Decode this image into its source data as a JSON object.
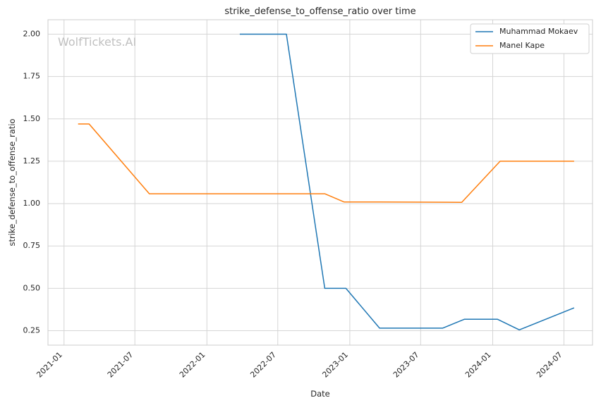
{
  "chart_data": {
    "type": "line",
    "title": "strike_defense_to_offense_ratio over time",
    "xlabel": "Date",
    "ylabel": "strike_defense_to_offense_ratio",
    "watermark": "WolfTickets.AI",
    "x_ticks": [
      "2021-01",
      "2021-07",
      "2022-01",
      "2022-07",
      "2023-01",
      "2023-07",
      "2024-01",
      "2024-07"
    ],
    "y_ticks": [
      "0.25",
      "0.50",
      "0.75",
      "1.00",
      "1.25",
      "1.50",
      "1.75",
      "2.00"
    ],
    "xlim": [
      "2020-11-21",
      "2024-09-12"
    ],
    "ylim": [
      0.165,
      2.085
    ],
    "grid": true,
    "legend_position": "top-right",
    "series": [
      {
        "name": "Muhammad Mokaev",
        "color": "#1f77b4",
        "points": [
          {
            "x": "2022-03-26",
            "y": 2.0
          },
          {
            "x": "2022-07-23",
            "y": 2.0
          },
          {
            "x": "2022-10-29",
            "y": 0.5
          },
          {
            "x": "2022-12-22",
            "y": 0.5
          },
          {
            "x": "2023-03-18",
            "y": 0.265
          },
          {
            "x": "2023-08-26",
            "y": 0.265
          },
          {
            "x": "2023-10-21",
            "y": 0.318
          },
          {
            "x": "2024-01-13",
            "y": 0.318
          },
          {
            "x": "2024-03-09",
            "y": 0.255
          },
          {
            "x": "2024-07-27",
            "y": 0.385
          }
        ]
      },
      {
        "name": "Manel Kape",
        "color": "#ff7f0e",
        "points": [
          {
            "x": "2021-02-06",
            "y": 1.47
          },
          {
            "x": "2021-03-06",
            "y": 1.47
          },
          {
            "x": "2021-08-07",
            "y": 1.058
          },
          {
            "x": "2022-10-29",
            "y": 1.058
          },
          {
            "x": "2022-12-17",
            "y": 1.01
          },
          {
            "x": "2023-03-18",
            "y": 1.01
          },
          {
            "x": "2023-10-14",
            "y": 1.008
          },
          {
            "x": "2024-01-20",
            "y": 1.25
          },
          {
            "x": "2024-07-27",
            "y": 1.25
          }
        ]
      }
    ]
  }
}
